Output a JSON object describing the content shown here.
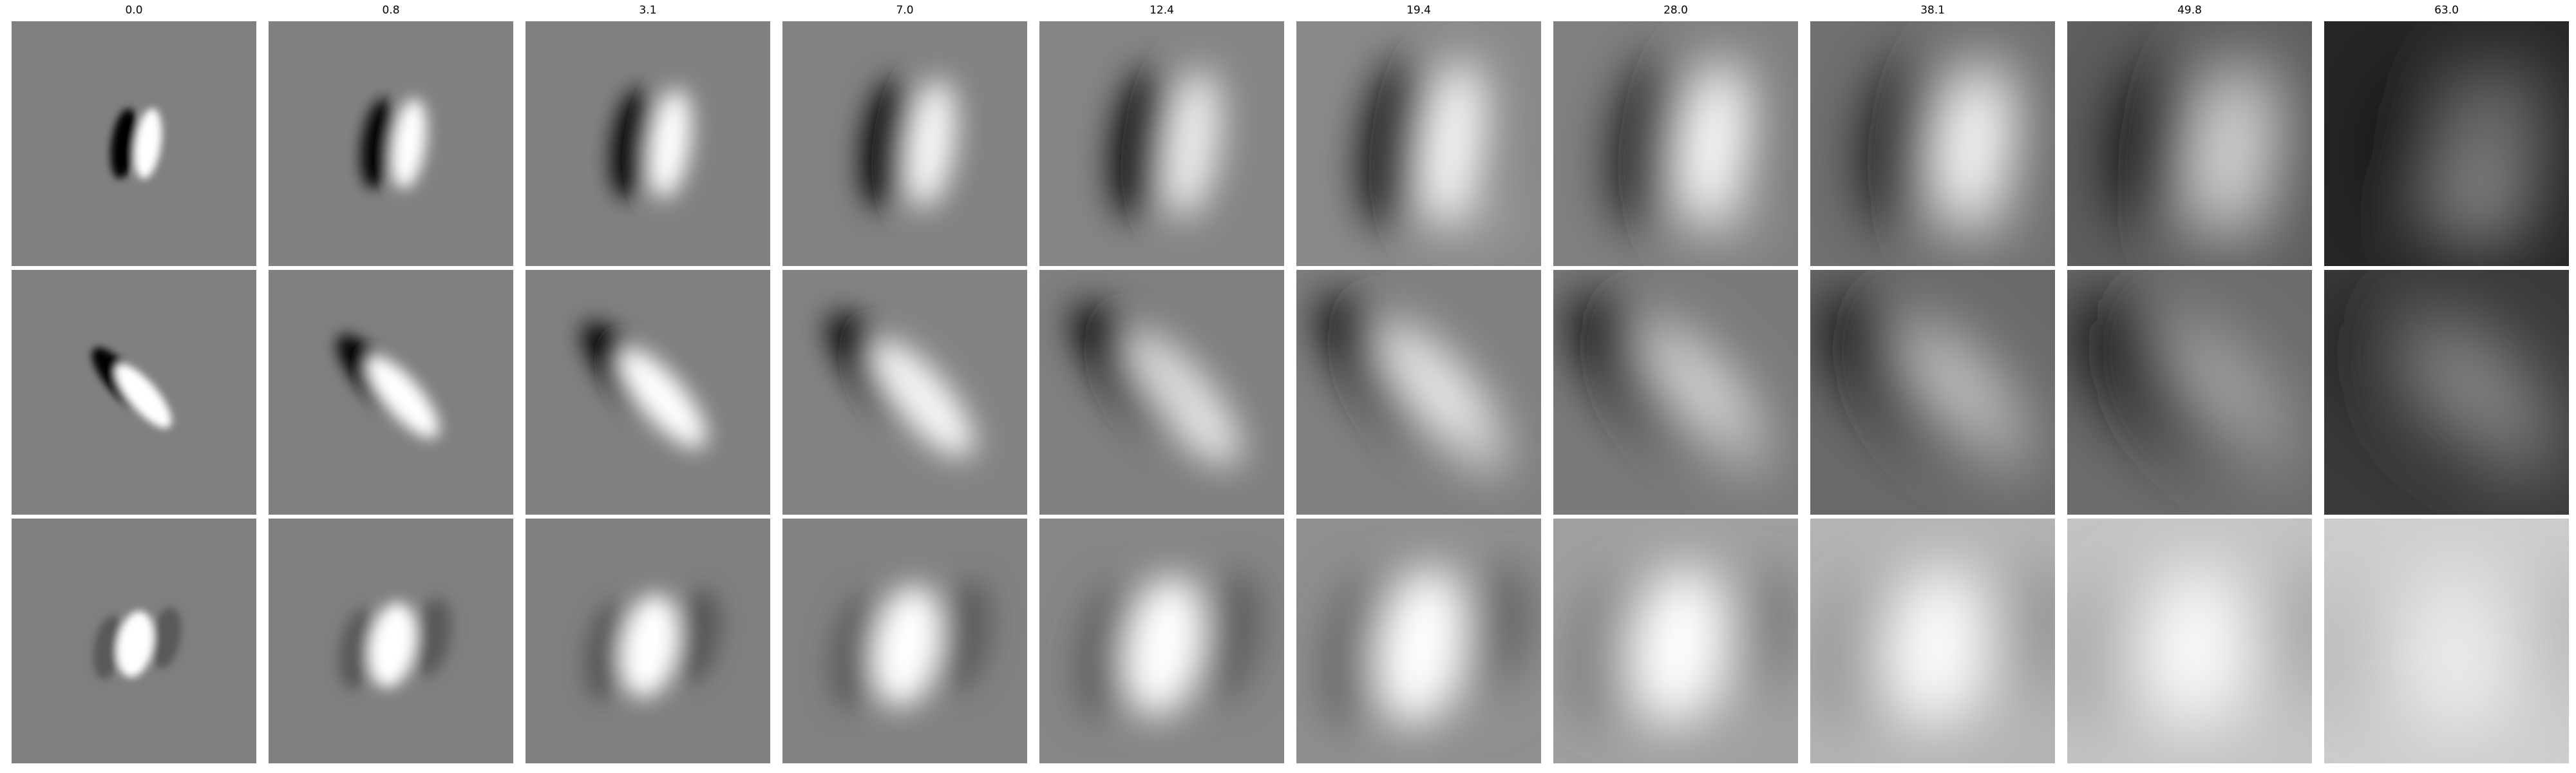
{
  "columns": [
    "0.0",
    "0.8",
    "3.1",
    "7.0",
    "12.4",
    "19.4",
    "28.0",
    "38.1",
    "49.8",
    "63.0"
  ],
  "rows": [
    {
      "background": [
        "#808080",
        "#818181",
        "#818181",
        "#828282",
        "#858585",
        "#8a8a8a",
        "#808080",
        "#707070",
        "#5e5e5e",
        "#262626"
      ],
      "dark_color": "#000000",
      "light_color": "#ffffff",
      "dark_strength": [
        1.0,
        1.0,
        1.0,
        1.0,
        1.0,
        1.0,
        0.9,
        0.9,
        1.0,
        0.45
      ],
      "light_strength": [
        1.0,
        1.0,
        1.0,
        0.95,
        0.85,
        0.95,
        1.0,
        1.0,
        0.75,
        0.35
      ]
    },
    {
      "background": [
        "#808080",
        "#808080",
        "#808080",
        "#838383",
        "#7f7f7f",
        "#808080",
        "#7a7a7a",
        "#6a6a6a",
        "#6c6c6c",
        "#3a3a3a"
      ],
      "dark_color": "#000000",
      "light_color": "#ffffff",
      "dark_strength": [
        1.0,
        1.0,
        1.0,
        1.0,
        1.0,
        1.0,
        1.0,
        0.95,
        0.95,
        0.45
      ],
      "light_strength": [
        1.0,
        1.0,
        1.0,
        0.95,
        0.8,
        0.85,
        0.7,
        0.6,
        0.4,
        0.4
      ]
    },
    {
      "background": [
        "#7f7f7f",
        "#808080",
        "#808080",
        "#828282",
        "#868686",
        "#8f8f8f",
        "#a0a0a0",
        "#b4b4b4",
        "#c4c4c4",
        "#cecece"
      ],
      "dark_color": "#505050",
      "light_color": "#ffffff",
      "dark_strength": [
        0.8,
        0.8,
        0.8,
        0.75,
        0.7,
        0.65,
        0.45,
        0.35,
        0.3,
        0.2
      ],
      "light_strength": [
        1.0,
        1.0,
        1.0,
        1.0,
        1.0,
        1.0,
        1.0,
        0.95,
        0.9,
        0.55
      ]
    }
  ]
}
